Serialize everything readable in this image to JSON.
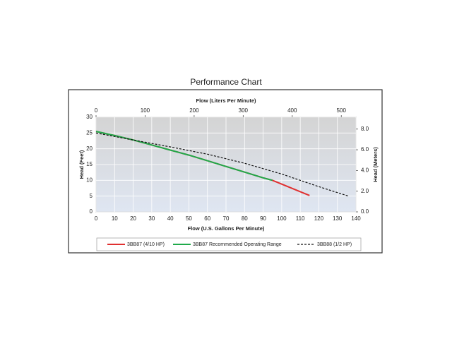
{
  "chart_data": {
    "type": "line",
    "title": "Performance Chart",
    "xlabel": "Flow (U.S. Gallons Per Minute)",
    "x2label": "Flow (Liters Per Minute)",
    "ylabel": "Head (Feet)",
    "y2label": "Head (Meters)",
    "xlim": [
      0,
      140
    ],
    "xticks": [
      0,
      10,
      20,
      30,
      40,
      50,
      60,
      70,
      80,
      90,
      100,
      110,
      120,
      130,
      140
    ],
    "x2lim": [
      0,
      529.9
    ],
    "x2ticks": [
      0,
      100,
      200,
      300,
      400,
      500
    ],
    "ylim": [
      0,
      30
    ],
    "yticks": [
      0,
      5,
      10,
      15,
      20,
      25,
      30
    ],
    "y2lim": [
      0,
      9.144
    ],
    "y2ticks": [
      {
        "value": 0,
        "label": "0.0"
      },
      {
        "value": 2,
        "label": "2.0"
      },
      {
        "value": 4,
        "label": "4.0"
      },
      {
        "value": 6,
        "label": "6.0"
      },
      {
        "value": 8,
        "label": "8.0"
      }
    ],
    "grid": true,
    "series": [
      {
        "name": "3BB87 (4/10 HP)",
        "color": "#e03030",
        "dashed": false,
        "x": [
          0,
          10,
          20,
          30,
          40,
          50,
          60,
          70,
          80,
          90,
          95,
          100,
          110,
          115
        ],
        "values": [
          25.5,
          24.2,
          22.8,
          21.2,
          19.6,
          18,
          16.2,
          14.4,
          12.6,
          10.8,
          10,
          8.8,
          6.4,
          5.2
        ]
      },
      {
        "name": "3BB87 Recommended Operating Range",
        "color": "#1faa4a",
        "dashed": false,
        "x": [
          0,
          10,
          20,
          30,
          40,
          50,
          60,
          70,
          80,
          90,
          95
        ],
        "values": [
          25.5,
          24.2,
          22.8,
          21.2,
          19.6,
          18,
          16.2,
          14.4,
          12.6,
          10.8,
          10
        ]
      },
      {
        "name": "3BB88 (1/2 HP)",
        "color": "#111111",
        "dashed": true,
        "x": [
          0,
          20,
          40,
          60,
          80,
          100,
          120,
          136
        ],
        "values": [
          25,
          22.8,
          20.6,
          18.3,
          15.4,
          12,
          8,
          5
        ]
      }
    ]
  }
}
